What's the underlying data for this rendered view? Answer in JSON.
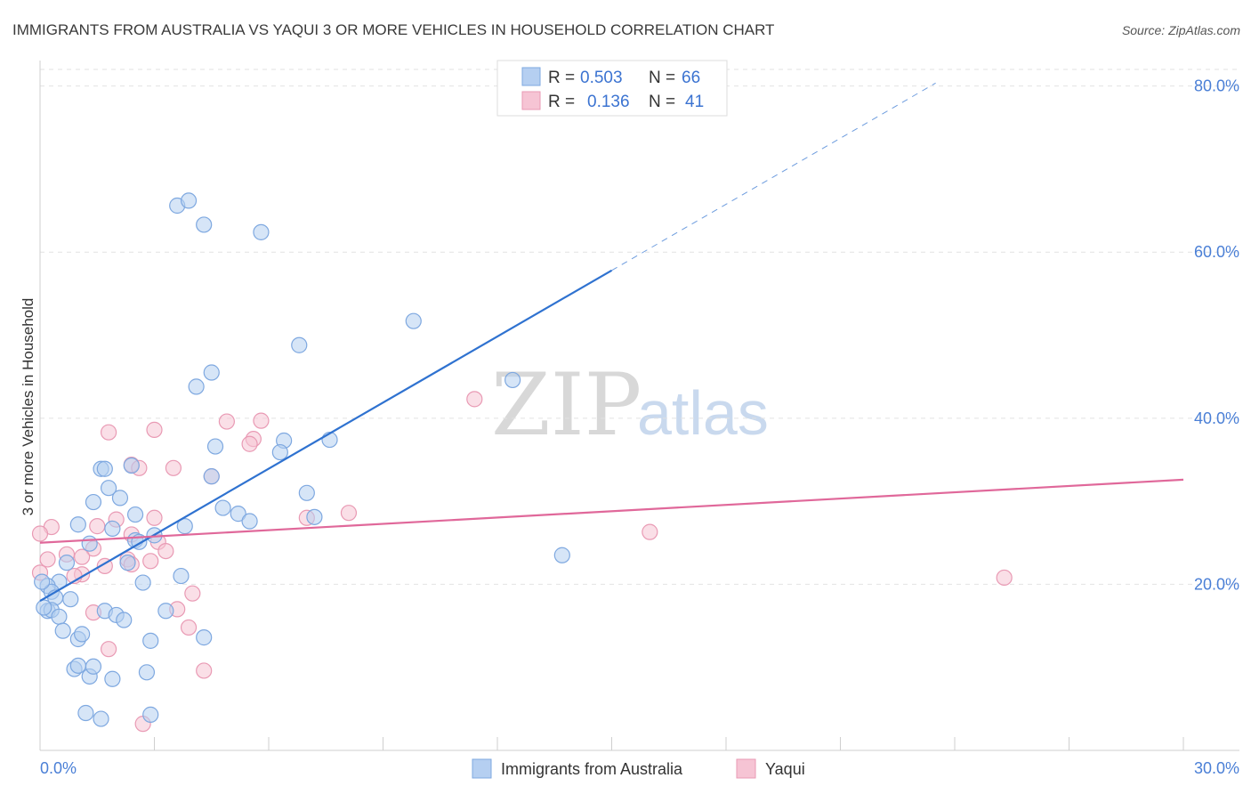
{
  "chart_data": {
    "type": "scatter",
    "title": "IMMIGRANTS FROM AUSTRALIA VS YAQUI 3 OR MORE VEHICLES IN HOUSEHOLD CORRELATION CHART",
    "source": "Source: ZipAtlas.com",
    "xlabel": "",
    "ylabel": "3 or more Vehicles in Household",
    "xlim": [
      0,
      30
    ],
    "ylim": [
      0,
      82
    ],
    "x_tick_labels": [
      "0.0%",
      "30.0%"
    ],
    "y_ticks": [
      20,
      40,
      60,
      80
    ],
    "y_tick_labels": [
      "20.0%",
      "40.0%",
      "60.0%",
      "80.0%"
    ],
    "watermark": {
      "zip": "ZIP",
      "atlas": "atlas"
    },
    "legend": {
      "r_label": "R =",
      "n_label": "N =",
      "entries": [
        {
          "name": "Immigrants from Australia",
          "r": "0.503",
          "n": "66"
        },
        {
          "name": "Yaqui",
          "r": "0.136",
          "n": "41"
        }
      ]
    },
    "colors": {
      "blue_fill": "#b5cff1",
      "blue_stroke": "#7ea8e0",
      "blue_line": "#2f72d0",
      "pink_fill": "#f6c4d4",
      "pink_stroke": "#e99ab4",
      "pink_line": "#e0689a"
    },
    "series": [
      {
        "name": "Immigrants from Australia",
        "trend": {
          "x0": 0.0,
          "y0": 18.0,
          "x1": 15.0,
          "y1": 57.8,
          "x_dash_end": 23.5
        },
        "points": [
          [
            3.6,
            65.6
          ],
          [
            3.9,
            66.2
          ],
          [
            4.3,
            63.3
          ],
          [
            5.8,
            62.4
          ],
          [
            9.8,
            51.7
          ],
          [
            6.8,
            48.8
          ],
          [
            12.4,
            44.6
          ],
          [
            4.5,
            45.5
          ],
          [
            4.1,
            43.8
          ],
          [
            4.6,
            36.6
          ],
          [
            6.4,
            37.3
          ],
          [
            6.3,
            35.9
          ],
          [
            7.6,
            37.4
          ],
          [
            1.6,
            33.9
          ],
          [
            1.7,
            33.9
          ],
          [
            2.4,
            34.3
          ],
          [
            4.5,
            33.0
          ],
          [
            7.0,
            31.0
          ],
          [
            1.8,
            31.6
          ],
          [
            1.4,
            29.9
          ],
          [
            2.1,
            30.4
          ],
          [
            4.8,
            29.2
          ],
          [
            5.2,
            28.5
          ],
          [
            5.5,
            27.6
          ],
          [
            7.2,
            28.1
          ],
          [
            2.5,
            28.4
          ],
          [
            3.8,
            27.0
          ],
          [
            1.0,
            27.2
          ],
          [
            1.9,
            26.7
          ],
          [
            3.0,
            25.9
          ],
          [
            2.5,
            25.3
          ],
          [
            2.6,
            25.1
          ],
          [
            1.3,
            24.9
          ],
          [
            13.7,
            23.5
          ],
          [
            0.7,
            22.6
          ],
          [
            2.3,
            22.6
          ],
          [
            3.7,
            21.0
          ],
          [
            0.5,
            20.3
          ],
          [
            2.7,
            20.2
          ],
          [
            0.2,
            19.8
          ],
          [
            0.3,
            19.1
          ],
          [
            0.4,
            18.4
          ],
          [
            0.8,
            18.2
          ],
          [
            3.3,
            16.8
          ],
          [
            1.7,
            16.8
          ],
          [
            2.0,
            16.3
          ],
          [
            2.2,
            15.7
          ],
          [
            0.2,
            16.8
          ],
          [
            0.3,
            16.9
          ],
          [
            0.5,
            16.1
          ],
          [
            0.6,
            14.4
          ],
          [
            1.0,
            13.4
          ],
          [
            1.1,
            14.0
          ],
          [
            2.9,
            13.2
          ],
          [
            4.3,
            13.6
          ],
          [
            0.9,
            9.8
          ],
          [
            1.0,
            10.2
          ],
          [
            1.3,
            8.9
          ],
          [
            1.4,
            10.1
          ],
          [
            1.9,
            8.6
          ],
          [
            2.8,
            9.4
          ],
          [
            1.2,
            4.5
          ],
          [
            1.6,
            3.8
          ],
          [
            2.9,
            4.3
          ],
          [
            0.05,
            20.3
          ],
          [
            0.1,
            17.2
          ]
        ]
      },
      {
        "name": "Yaqui",
        "trend": {
          "x0": 0.0,
          "y0": 25.0,
          "x1": 30.0,
          "y1": 32.6
        },
        "points": [
          [
            11.4,
            42.3
          ],
          [
            3.0,
            38.6
          ],
          [
            1.8,
            38.3
          ],
          [
            4.9,
            39.6
          ],
          [
            5.8,
            39.7
          ],
          [
            5.6,
            37.5
          ],
          [
            5.5,
            36.9
          ],
          [
            2.4,
            34.4
          ],
          [
            2.6,
            34.0
          ],
          [
            3.5,
            34.0
          ],
          [
            4.5,
            33.0
          ],
          [
            0.3,
            26.9
          ],
          [
            2.0,
            27.8
          ],
          [
            3.0,
            28.0
          ],
          [
            7.0,
            28.0
          ],
          [
            8.1,
            28.6
          ],
          [
            1.5,
            27.0
          ],
          [
            0.0,
            26.1
          ],
          [
            2.4,
            26.0
          ],
          [
            3.1,
            25.1
          ],
          [
            1.4,
            24.3
          ],
          [
            3.3,
            24.0
          ],
          [
            0.7,
            23.6
          ],
          [
            1.1,
            23.3
          ],
          [
            0.2,
            23.0
          ],
          [
            2.3,
            23.0
          ],
          [
            2.4,
            22.4
          ],
          [
            1.7,
            22.2
          ],
          [
            0.0,
            21.4
          ],
          [
            1.1,
            21.2
          ],
          [
            0.9,
            21.0
          ],
          [
            16.0,
            26.3
          ],
          [
            25.3,
            20.8
          ],
          [
            4.0,
            18.9
          ],
          [
            3.6,
            17.0
          ],
          [
            1.4,
            16.6
          ],
          [
            3.9,
            14.8
          ],
          [
            1.8,
            12.2
          ],
          [
            4.3,
            9.6
          ],
          [
            2.7,
            3.2
          ],
          [
            2.9,
            22.8
          ]
        ]
      }
    ]
  }
}
